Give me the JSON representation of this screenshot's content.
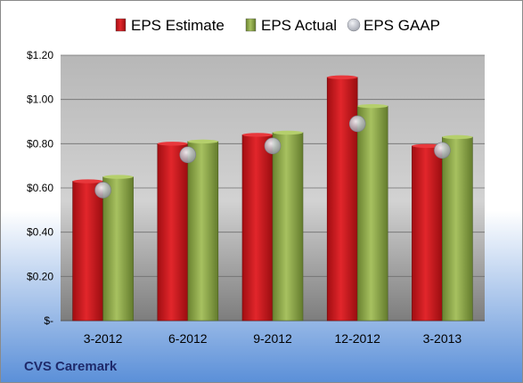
{
  "colors": {
    "estimate": "#c0161b",
    "actual": "#7e9a3c",
    "gaap": "#b5b8c2",
    "background_top": "#ffffff",
    "background_bottom": "#5a8fd8",
    "footer_text": "#1f2a6b"
  },
  "footer": "CVS Caremark",
  "chart_data": {
    "type": "bar",
    "categories": [
      "3-2012",
      "6-2012",
      "9-2012",
      "12-2012",
      "3-2013"
    ],
    "series": [
      {
        "name": "EPS Estimate",
        "values": [
          0.63,
          0.8,
          0.84,
          1.1,
          0.79
        ],
        "mark": "bar",
        "color": "#c0161b"
      },
      {
        "name": "EPS Actual",
        "values": [
          0.65,
          0.81,
          0.85,
          0.97,
          0.83
        ],
        "mark": "bar",
        "color": "#7e9a3c"
      },
      {
        "name": "EPS GAAP",
        "values": [
          0.59,
          0.75,
          0.79,
          0.89,
          0.77
        ],
        "mark": "point",
        "color": "#b5b8c2"
      }
    ],
    "ylim": [
      0,
      1.2
    ],
    "yticks": [
      0,
      0.2,
      0.4,
      0.6,
      0.8,
      1.0,
      1.2
    ],
    "ytick_labels": [
      "$-",
      "$0.20",
      "$0.40",
      "$0.60",
      "$0.80",
      "$1.00",
      "$1.20"
    ],
    "grid": true,
    "legend_position": "top"
  }
}
